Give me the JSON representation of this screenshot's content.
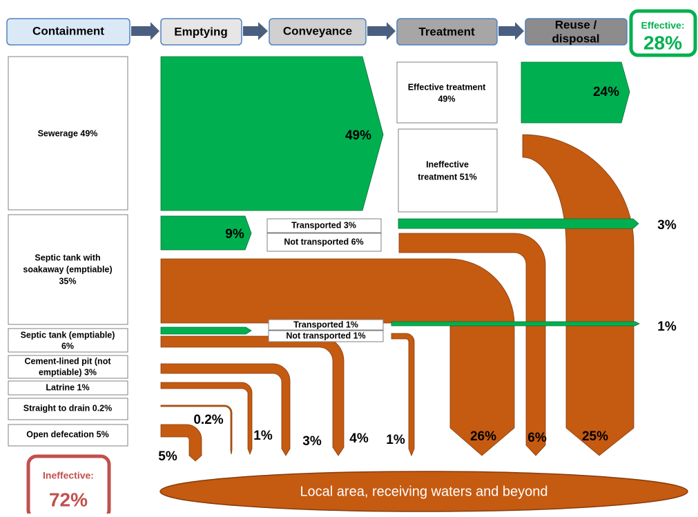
{
  "stages": [
    "Containment",
    "Emptying",
    "Conveyance",
    "Treatment",
    [
      "Reuse /",
      "disposal"
    ]
  ],
  "effective": {
    "label": "Effective:",
    "value": "28%"
  },
  "ineffective": {
    "label": "Ineffective:",
    "value": "72%"
  },
  "containment": [
    [
      "Sewerage 49%"
    ],
    [
      "Septic tank with",
      "soakaway (emptiable)",
      "35%"
    ],
    [
      "Septic tank (emptiable)",
      "6%"
    ],
    [
      "Cement-lined pit (not",
      "emptiable) 3%"
    ],
    [
      "Latrine 1%"
    ],
    [
      "Straight to drain 0.2%"
    ],
    [
      "Open defecation 5%"
    ]
  ],
  "conveyance": [
    "Transported 3%",
    "Not transported 6%",
    "Transported 1%",
    "Not transported 1%"
  ],
  "treatment": [
    [
      "Effective treatment",
      "49%"
    ],
    [
      "Ineffective",
      "treatment 51%"
    ]
  ],
  "flows": {
    "sewerage_emptied": "49%",
    "reused": "24%",
    "septic_emptied": "9%",
    "septic_transported_out": "3%",
    "septic_tank_transported_out": "1%",
    "straight_to_drain": "0.2%",
    "latrine": "1%",
    "cement_pit": "3%",
    "septic_tank_not_emptied": "4%",
    "septic_tank_not_transported": "1%",
    "septic_not_emptied": "26%",
    "septic_not_transported": "6%",
    "ineffective_treatment": "25%",
    "open_defecation": "5%"
  },
  "sink": "Local area, receiving waters and beyond"
}
